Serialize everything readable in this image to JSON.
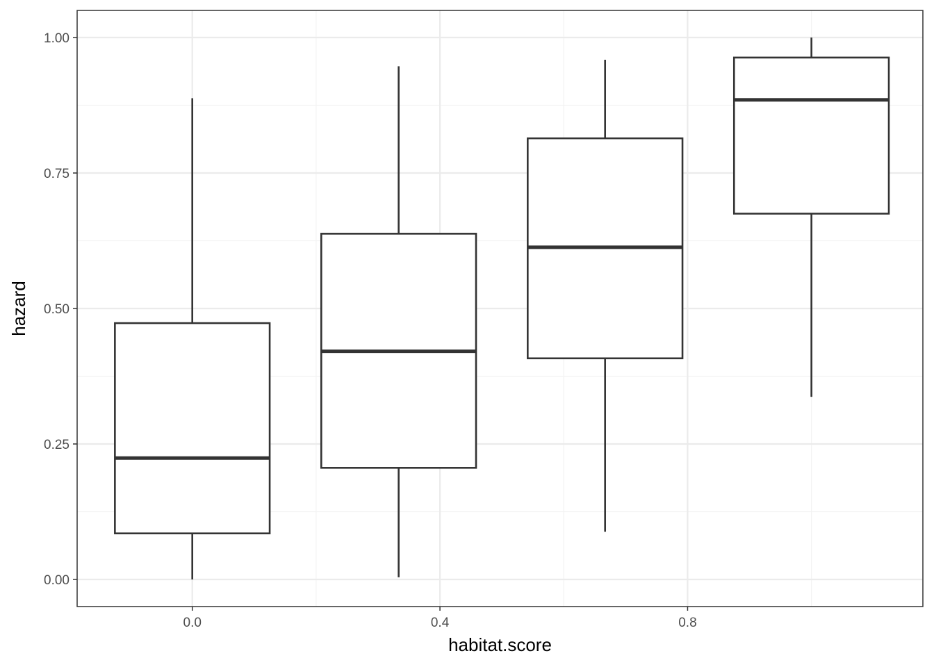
{
  "chart_data": {
    "type": "boxplot",
    "title": "",
    "xlabel": "habitat.score",
    "ylabel": "hazard",
    "xlim": [
      -0.186,
      1.18
    ],
    "ylim": [
      -0.05,
      1.05
    ],
    "x_ticks": [
      {
        "value": 0.0,
        "label": "0.0"
      },
      {
        "value": 0.4,
        "label": "0.4"
      },
      {
        "value": 0.8,
        "label": "0.8"
      }
    ],
    "y_ticks": [
      {
        "value": 0.0,
        "label": "0.00"
      },
      {
        "value": 0.25,
        "label": "0.25"
      },
      {
        "value": 0.5,
        "label": "0.50"
      },
      {
        "value": 0.75,
        "label": "0.75"
      },
      {
        "value": 1.0,
        "label": "1.00"
      }
    ],
    "box_width": 0.25,
    "grid": true,
    "boxes": [
      {
        "x": 0.0,
        "whisker_low": 0.0,
        "q1": 0.085,
        "median": 0.224,
        "q3": 0.473,
        "whisker_high": 0.888
      },
      {
        "x": 0.3333,
        "whisker_low": 0.004,
        "q1": 0.206,
        "median": 0.421,
        "q3": 0.638,
        "whisker_high": 0.947
      },
      {
        "x": 0.6667,
        "whisker_low": 0.088,
        "q1": 0.408,
        "median": 0.613,
        "q3": 0.814,
        "whisker_high": 0.959
      },
      {
        "x": 1.0,
        "whisker_low": 0.337,
        "q1": 0.675,
        "median": 0.885,
        "q3": 0.963,
        "whisker_high": 1.0
      }
    ],
    "colors": {
      "box_stroke": "#333333",
      "grid_major": "#ebebeb",
      "grid_minor": "#f3f3f3",
      "panel_border": "#333333",
      "tick_label": "#4d4d4d"
    }
  }
}
